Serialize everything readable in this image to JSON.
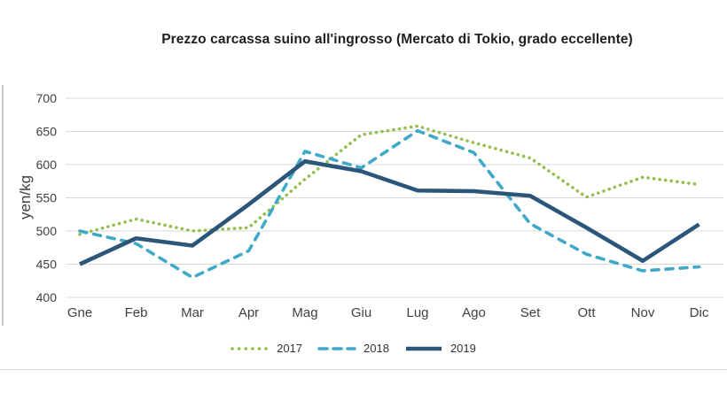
{
  "title": "Prezzo carcassa suino all'ingrosso (Mercato di Tokio, grado eccellente)",
  "chart_data": {
    "type": "line",
    "title": "Prezzo carcassa suino all'ingrosso (Mercato di Tokio, grado eccellente)",
    "xlabel": "",
    "ylabel": "yen/kg",
    "categories": [
      "Gne",
      "Feb",
      "Mar",
      "Apr",
      "Mag",
      "Giu",
      "Lug",
      "Ago",
      "Set",
      "Ott",
      "Nov",
      "Dic"
    ],
    "series": [
      {
        "name": "2017",
        "style": "dotted",
        "color": "#94be4e",
        "values": [
          495,
          518,
          500,
          505,
          578,
          645,
          658,
          633,
          610,
          551,
          581,
          570
        ]
      },
      {
        "name": "2018",
        "style": "dashed",
        "color": "#3fa9c9",
        "values": [
          500,
          481,
          430,
          470,
          620,
          595,
          651,
          618,
          511,
          465,
          440,
          446
        ]
      },
      {
        "name": "2019",
        "style": "solid",
        "color": "#2b5679",
        "values": [
          450,
          489,
          478,
          540,
          605,
          590,
          561,
          560,
          553,
          505,
          455,
          510
        ]
      }
    ],
    "ylim": [
      400,
      700
    ],
    "yticks": [
      400,
      450,
      500,
      550,
      600,
      650,
      700
    ],
    "grid": "horizontal-only",
    "gridline_color": "#d9d9d9",
    "axis_text_color": "#3f3f3f",
    "legend_position": "bottom-center",
    "unit": "yen/kg"
  }
}
